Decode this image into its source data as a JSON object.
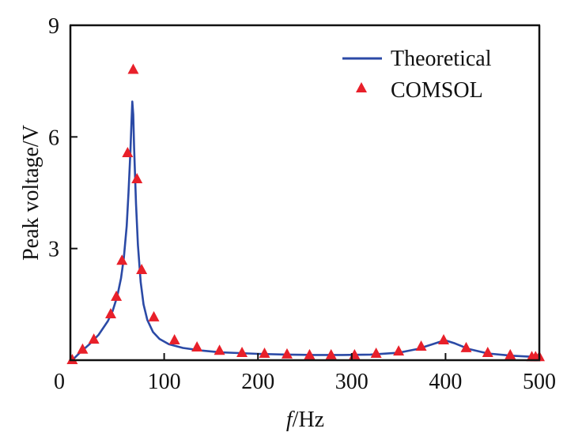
{
  "chart_data": {
    "type": "line",
    "title": "",
    "xlabel": "f/Hz",
    "xlabel_italic": "f",
    "xlabel_unit": "/Hz",
    "ylabel": "Peak voltage/V",
    "xlim": [
      0,
      500
    ],
    "ylim": [
      0,
      9
    ],
    "xticks": [
      0,
      100,
      200,
      300,
      400,
      500
    ],
    "xtick_labels": [
      "0",
      "100",
      "200",
      "300",
      "400",
      "500"
    ],
    "yticks": [
      3,
      6,
      9
    ],
    "ytick_labels": [
      "3",
      "6",
      "9"
    ],
    "grid": false,
    "legend": {
      "placement": "top-right",
      "entries": [
        "Theoretical",
        "COMSOL"
      ]
    },
    "colors": {
      "theoretical": "#2b4aa6",
      "comsol": "#e8202a",
      "axis": "#111111"
    },
    "series": [
      {
        "name": "Theoretical",
        "kind": "line",
        "x": [
          2,
          10,
          20,
          30,
          40,
          45,
          50,
          54,
          57,
          60,
          62,
          64,
          65,
          66,
          67,
          68,
          70,
          72,
          75,
          78,
          82,
          88,
          95,
          105,
          120,
          140,
          160,
          180,
          200,
          230,
          260,
          290,
          320,
          350,
          370,
          385,
          395,
          400,
          410,
          425,
          445,
          470,
          500
        ],
        "y": [
          0.0,
          0.2,
          0.42,
          0.68,
          1.05,
          1.32,
          1.72,
          2.2,
          2.75,
          3.6,
          4.5,
          5.6,
          6.3,
          6.95,
          6.6,
          5.7,
          4.2,
          3.1,
          2.1,
          1.5,
          1.08,
          0.76,
          0.57,
          0.43,
          0.33,
          0.26,
          0.21,
          0.19,
          0.17,
          0.15,
          0.14,
          0.14,
          0.15,
          0.2,
          0.3,
          0.42,
          0.5,
          0.53,
          0.45,
          0.3,
          0.18,
          0.12,
          0.08
        ]
      },
      {
        "name": "COMSOL",
        "kind": "scatter",
        "marker": "triangle",
        "x": [
          2,
          13,
          25,
          43,
          49,
          55,
          61,
          67,
          71,
          76,
          89,
          111,
          135,
          159,
          183,
          207,
          231,
          255,
          278,
          303,
          326,
          350,
          374,
          398,
          422,
          445,
          469,
          492,
          496,
          500
        ],
        "y": [
          0.0,
          0.28,
          0.55,
          1.23,
          1.7,
          2.67,
          5.56,
          7.8,
          4.86,
          2.42,
          1.15,
          0.53,
          0.34,
          0.25,
          0.19,
          0.17,
          0.15,
          0.13,
          0.13,
          0.13,
          0.17,
          0.23,
          0.36,
          0.53,
          0.32,
          0.19,
          0.13,
          0.08,
          0.08,
          0.08
        ]
      }
    ]
  }
}
